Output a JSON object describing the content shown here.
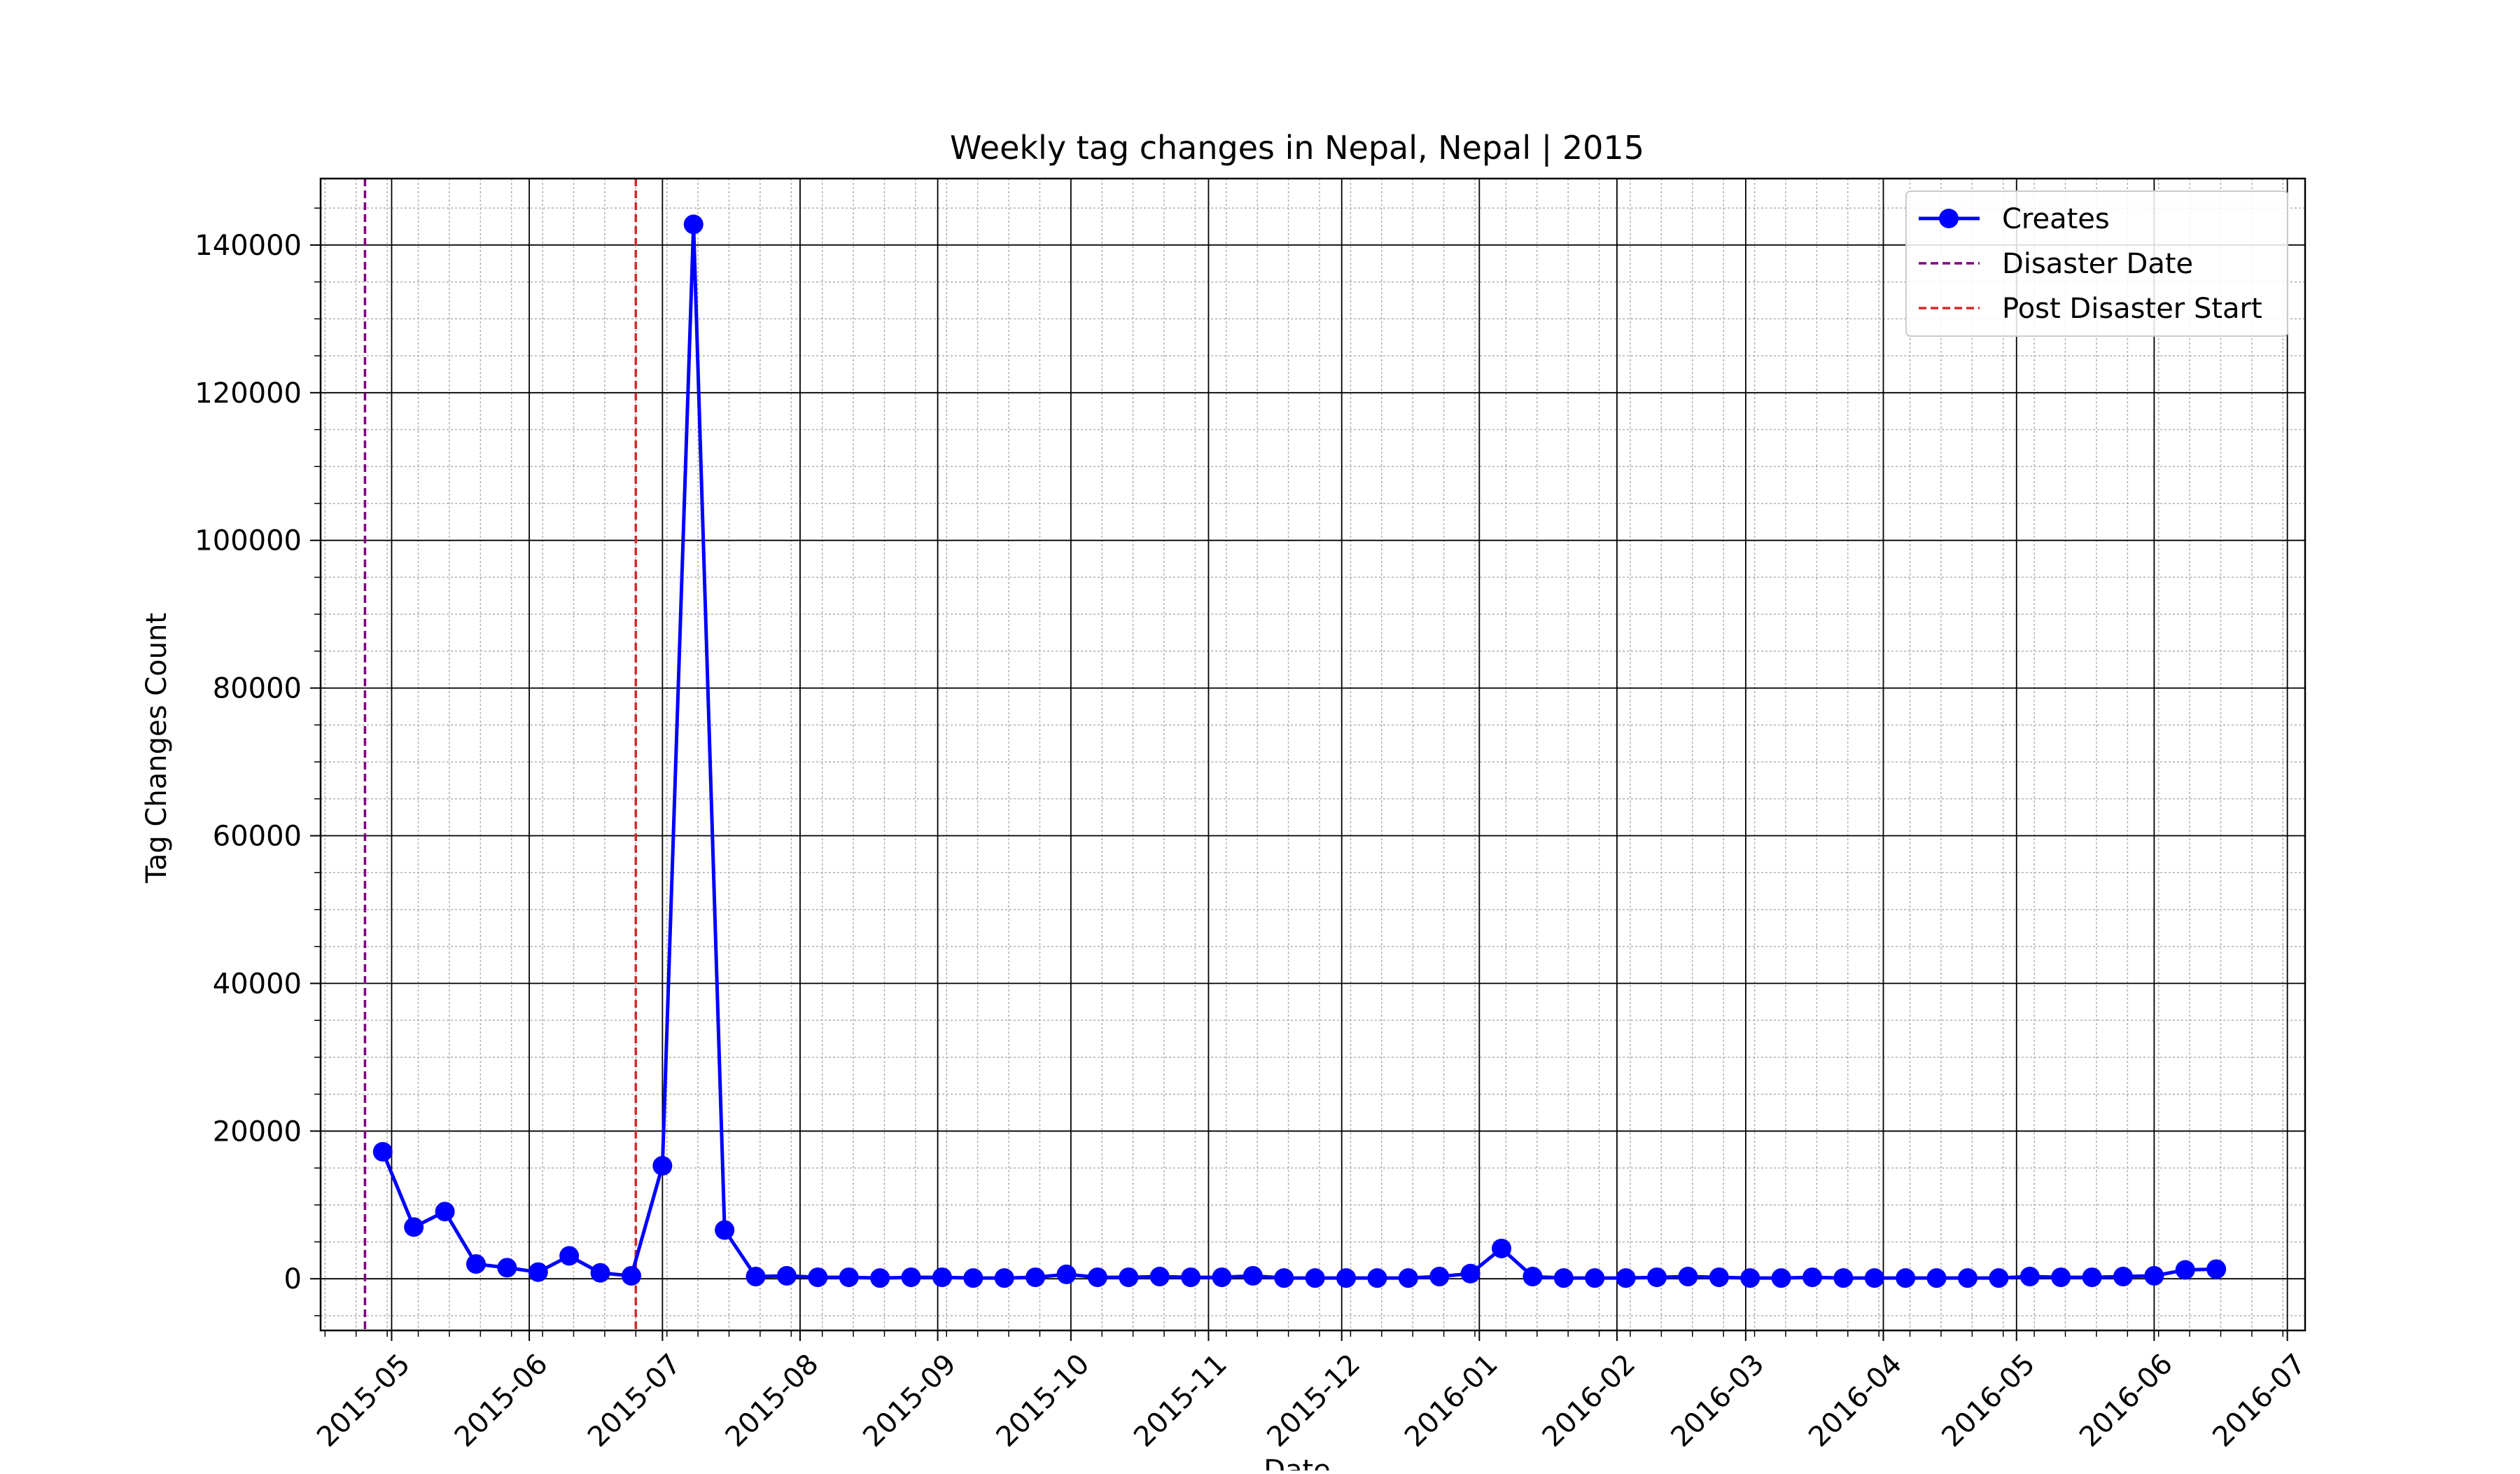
{
  "chart_data": {
    "type": "line",
    "title": "Weekly tag changes in Nepal, Nepal | 2015",
    "xlabel": "Date",
    "ylabel": "Tag Changes Count",
    "x_type": "date",
    "xlim": [
      "2015-04-15",
      "2016-07-05"
    ],
    "ylim": [
      -7000,
      149000
    ],
    "x_ticks": [
      "2015-05-01",
      "2015-06-01",
      "2015-07-01",
      "2015-08-01",
      "2015-09-01",
      "2015-10-01",
      "2015-11-01",
      "2015-12-01",
      "2016-01-01",
      "2016-02-01",
      "2016-03-01",
      "2016-04-01",
      "2016-05-01",
      "2016-06-01",
      "2016-07-01"
    ],
    "x_tick_labels": [
      "2015-05",
      "2015-06",
      "2015-07",
      "2015-08",
      "2015-09",
      "2015-10",
      "2015-11",
      "2015-12",
      "2016-01",
      "2016-02",
      "2016-03",
      "2016-04",
      "2016-05",
      "2016-06",
      "2016-07"
    ],
    "y_ticks": [
      0,
      20000,
      40000,
      60000,
      80000,
      100000,
      120000,
      140000
    ],
    "y_tick_labels": [
      "0",
      "20000",
      "40000",
      "60000",
      "80000",
      "100000",
      "120000",
      "140000"
    ],
    "grid": {
      "major": true,
      "minor": true
    },
    "legend": {
      "placement": "top-right"
    },
    "series": [
      {
        "name": "Creates",
        "color": "#0000ff",
        "marker": "circle",
        "x": [
          "2015-04-29",
          "2015-05-06",
          "2015-05-13",
          "2015-05-20",
          "2015-05-27",
          "2015-06-03",
          "2015-06-10",
          "2015-06-17",
          "2015-06-24",
          "2015-07-01",
          "2015-07-08",
          "2015-07-15",
          "2015-07-22",
          "2015-07-29",
          "2015-08-05",
          "2015-08-12",
          "2015-08-19",
          "2015-08-26",
          "2015-09-02",
          "2015-09-09",
          "2015-09-16",
          "2015-09-23",
          "2015-09-30",
          "2015-10-07",
          "2015-10-14",
          "2015-10-21",
          "2015-10-28",
          "2015-11-04",
          "2015-11-11",
          "2015-11-18",
          "2015-11-25",
          "2015-12-02",
          "2015-12-09",
          "2015-12-16",
          "2015-12-23",
          "2015-12-30",
          "2016-01-06",
          "2016-01-13",
          "2016-01-20",
          "2016-01-27",
          "2016-02-03",
          "2016-02-10",
          "2016-02-17",
          "2016-02-24",
          "2016-03-02",
          "2016-03-09",
          "2016-03-16",
          "2016-03-23",
          "2016-03-30",
          "2016-04-06",
          "2016-04-13",
          "2016-04-20",
          "2016-04-27",
          "2016-05-04",
          "2016-05-11",
          "2016-05-18",
          "2016-05-25",
          "2016-06-01",
          "2016-06-08",
          "2016-06-15"
        ],
        "y": [
          17200,
          7000,
          9100,
          2000,
          1500,
          900,
          3100,
          800,
          400,
          15300,
          142800,
          6600,
          300,
          400,
          200,
          200,
          100,
          200,
          200,
          100,
          100,
          200,
          600,
          200,
          200,
          300,
          200,
          200,
          400,
          100,
          100,
          100,
          100,
          100,
          300,
          700,
          4100,
          300,
          100,
          100,
          100,
          200,
          300,
          200,
          100,
          100,
          200,
          100,
          100,
          100,
          100,
          100,
          100,
          300,
          200,
          200,
          300,
          400,
          1200,
          1300
        ]
      }
    ],
    "vlines": [
      {
        "name": "Disaster Date",
        "x": "2015-04-25",
        "color": "#800080",
        "style": "dashed"
      },
      {
        "name": "Post Disaster Start",
        "x": "2015-06-25",
        "color": "#d62728",
        "style": "dashed"
      }
    ]
  }
}
